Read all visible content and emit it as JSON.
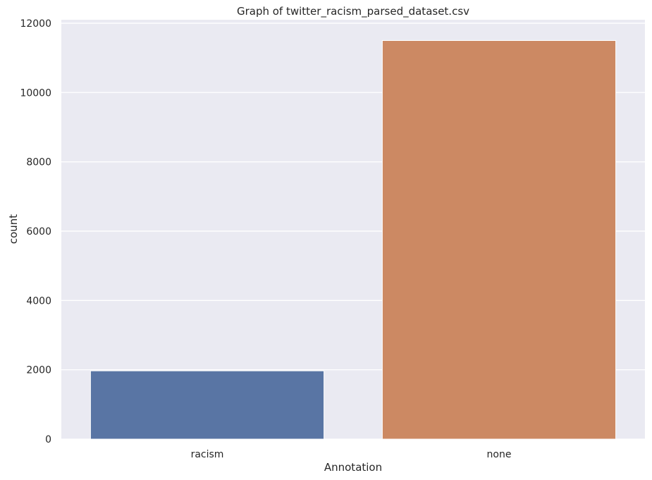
{
  "chart_data": {
    "type": "bar",
    "title": "Graph of twitter_racism_parsed_dataset.csv",
    "xlabel": "Annotation",
    "ylabel": "count",
    "categories": [
      "racism",
      "none"
    ],
    "values": [
      1970,
      11500
    ],
    "colors": [
      "#5975a4",
      "#cc8963"
    ],
    "ylim": [
      0,
      12100
    ],
    "yticks": [
      0,
      2000,
      4000,
      6000,
      8000,
      10000,
      12000
    ],
    "grid": true,
    "background": "#eaeaf2"
  }
}
